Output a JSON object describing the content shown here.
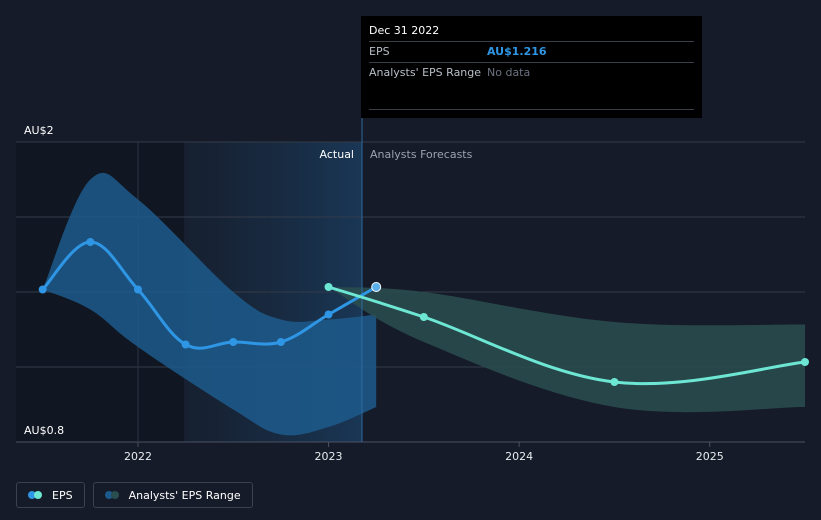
{
  "chart_data": {
    "type": "line",
    "x_unit": "year",
    "y_unit": "AU$",
    "y_axis": {
      "min": 0.8,
      "max": 2.0,
      "tick_labels": [
        "AU$2",
        "AU$0.8"
      ]
    },
    "x_axis": {
      "min": 2021.36,
      "max": 2025.5,
      "ticks": [
        2022,
        2023,
        2024,
        2025
      ],
      "tick_labels": [
        "2022",
        "2023",
        "2024",
        "2025"
      ]
    },
    "grid": true,
    "region_labels": {
      "actual": "Actual",
      "forecast": "Analysts Forecasts"
    },
    "actual_period": {
      "start": 2022.0,
      "end": 2023.0
    },
    "series": [
      {
        "name": "EPS",
        "kind": "actual",
        "points": [
          {
            "x": 2021.5,
            "y": 1.41
          },
          {
            "x": 2021.75,
            "y": 1.6
          },
          {
            "x": 2022.0,
            "y": 1.41
          },
          {
            "x": 2022.25,
            "y": 1.19
          },
          {
            "x": 2022.5,
            "y": 1.2
          },
          {
            "x": 2022.75,
            "y": 1.2
          },
          {
            "x": 2023.0,
            "y": 1.31
          },
          {
            "x": 2023.25,
            "y": 1.42
          }
        ],
        "color": "#2e96e4"
      },
      {
        "name": "EPS Forecast",
        "kind": "forecast",
        "points": [
          {
            "x": 2023.0,
            "y": 1.42
          },
          {
            "x": 2023.5,
            "y": 1.3
          },
          {
            "x": 2024.5,
            "y": 1.04
          },
          {
            "x": 2025.5,
            "y": 1.12
          }
        ],
        "color": "#6de7d4"
      },
      {
        "name": "Analysts' EPS Range",
        "kind": "range",
        "actual_band": {
          "upper": [
            {
              "x": 2021.5,
              "y": 1.41
            },
            {
              "x": 2021.75,
              "y": 1.85
            },
            {
              "x": 2022.0,
              "y": 1.77
            },
            {
              "x": 2022.5,
              "y": 1.4
            },
            {
              "x": 2022.75,
              "y": 1.29
            },
            {
              "x": 2023.0,
              "y": 1.29
            },
            {
              "x": 2023.25,
              "y": 1.31
            }
          ],
          "lower": [
            {
              "x": 2021.5,
              "y": 1.41
            },
            {
              "x": 2021.75,
              "y": 1.33
            },
            {
              "x": 2022.0,
              "y": 1.18
            },
            {
              "x": 2022.5,
              "y": 0.93
            },
            {
              "x": 2022.75,
              "y": 0.83
            },
            {
              "x": 2023.0,
              "y": 0.86
            },
            {
              "x": 2023.25,
              "y": 0.94
            }
          ],
          "color": "#1d5a8c"
        },
        "forecast_band": {
          "upper": [
            {
              "x": 2023.0,
              "y": 1.42
            },
            {
              "x": 2023.5,
              "y": 1.4
            },
            {
              "x": 2024.5,
              "y": 1.28
            },
            {
              "x": 2025.5,
              "y": 1.27
            }
          ],
          "lower": [
            {
              "x": 2023.0,
              "y": 1.42
            },
            {
              "x": 2023.5,
              "y": 1.2
            },
            {
              "x": 2024.5,
              "y": 0.94
            },
            {
              "x": 2025.5,
              "y": 0.94
            }
          ],
          "color": "#2a4d4f"
        }
      }
    ]
  },
  "tooltip": {
    "date": "Dec 31 2022",
    "rows": [
      {
        "label": "EPS",
        "value": "AU$1.216",
        "value_color": "#2e96e4"
      },
      {
        "label": "Analysts' EPS Range",
        "value": "No data",
        "value_color": "#6b7280"
      }
    ]
  },
  "legend": [
    {
      "label": "EPS",
      "colors": [
        "#2e96e4",
        "#6de7d4"
      ]
    },
    {
      "label": "Analysts' EPS Range",
      "colors": [
        "#1d5a8c",
        "#2a4d4f"
      ]
    }
  ]
}
